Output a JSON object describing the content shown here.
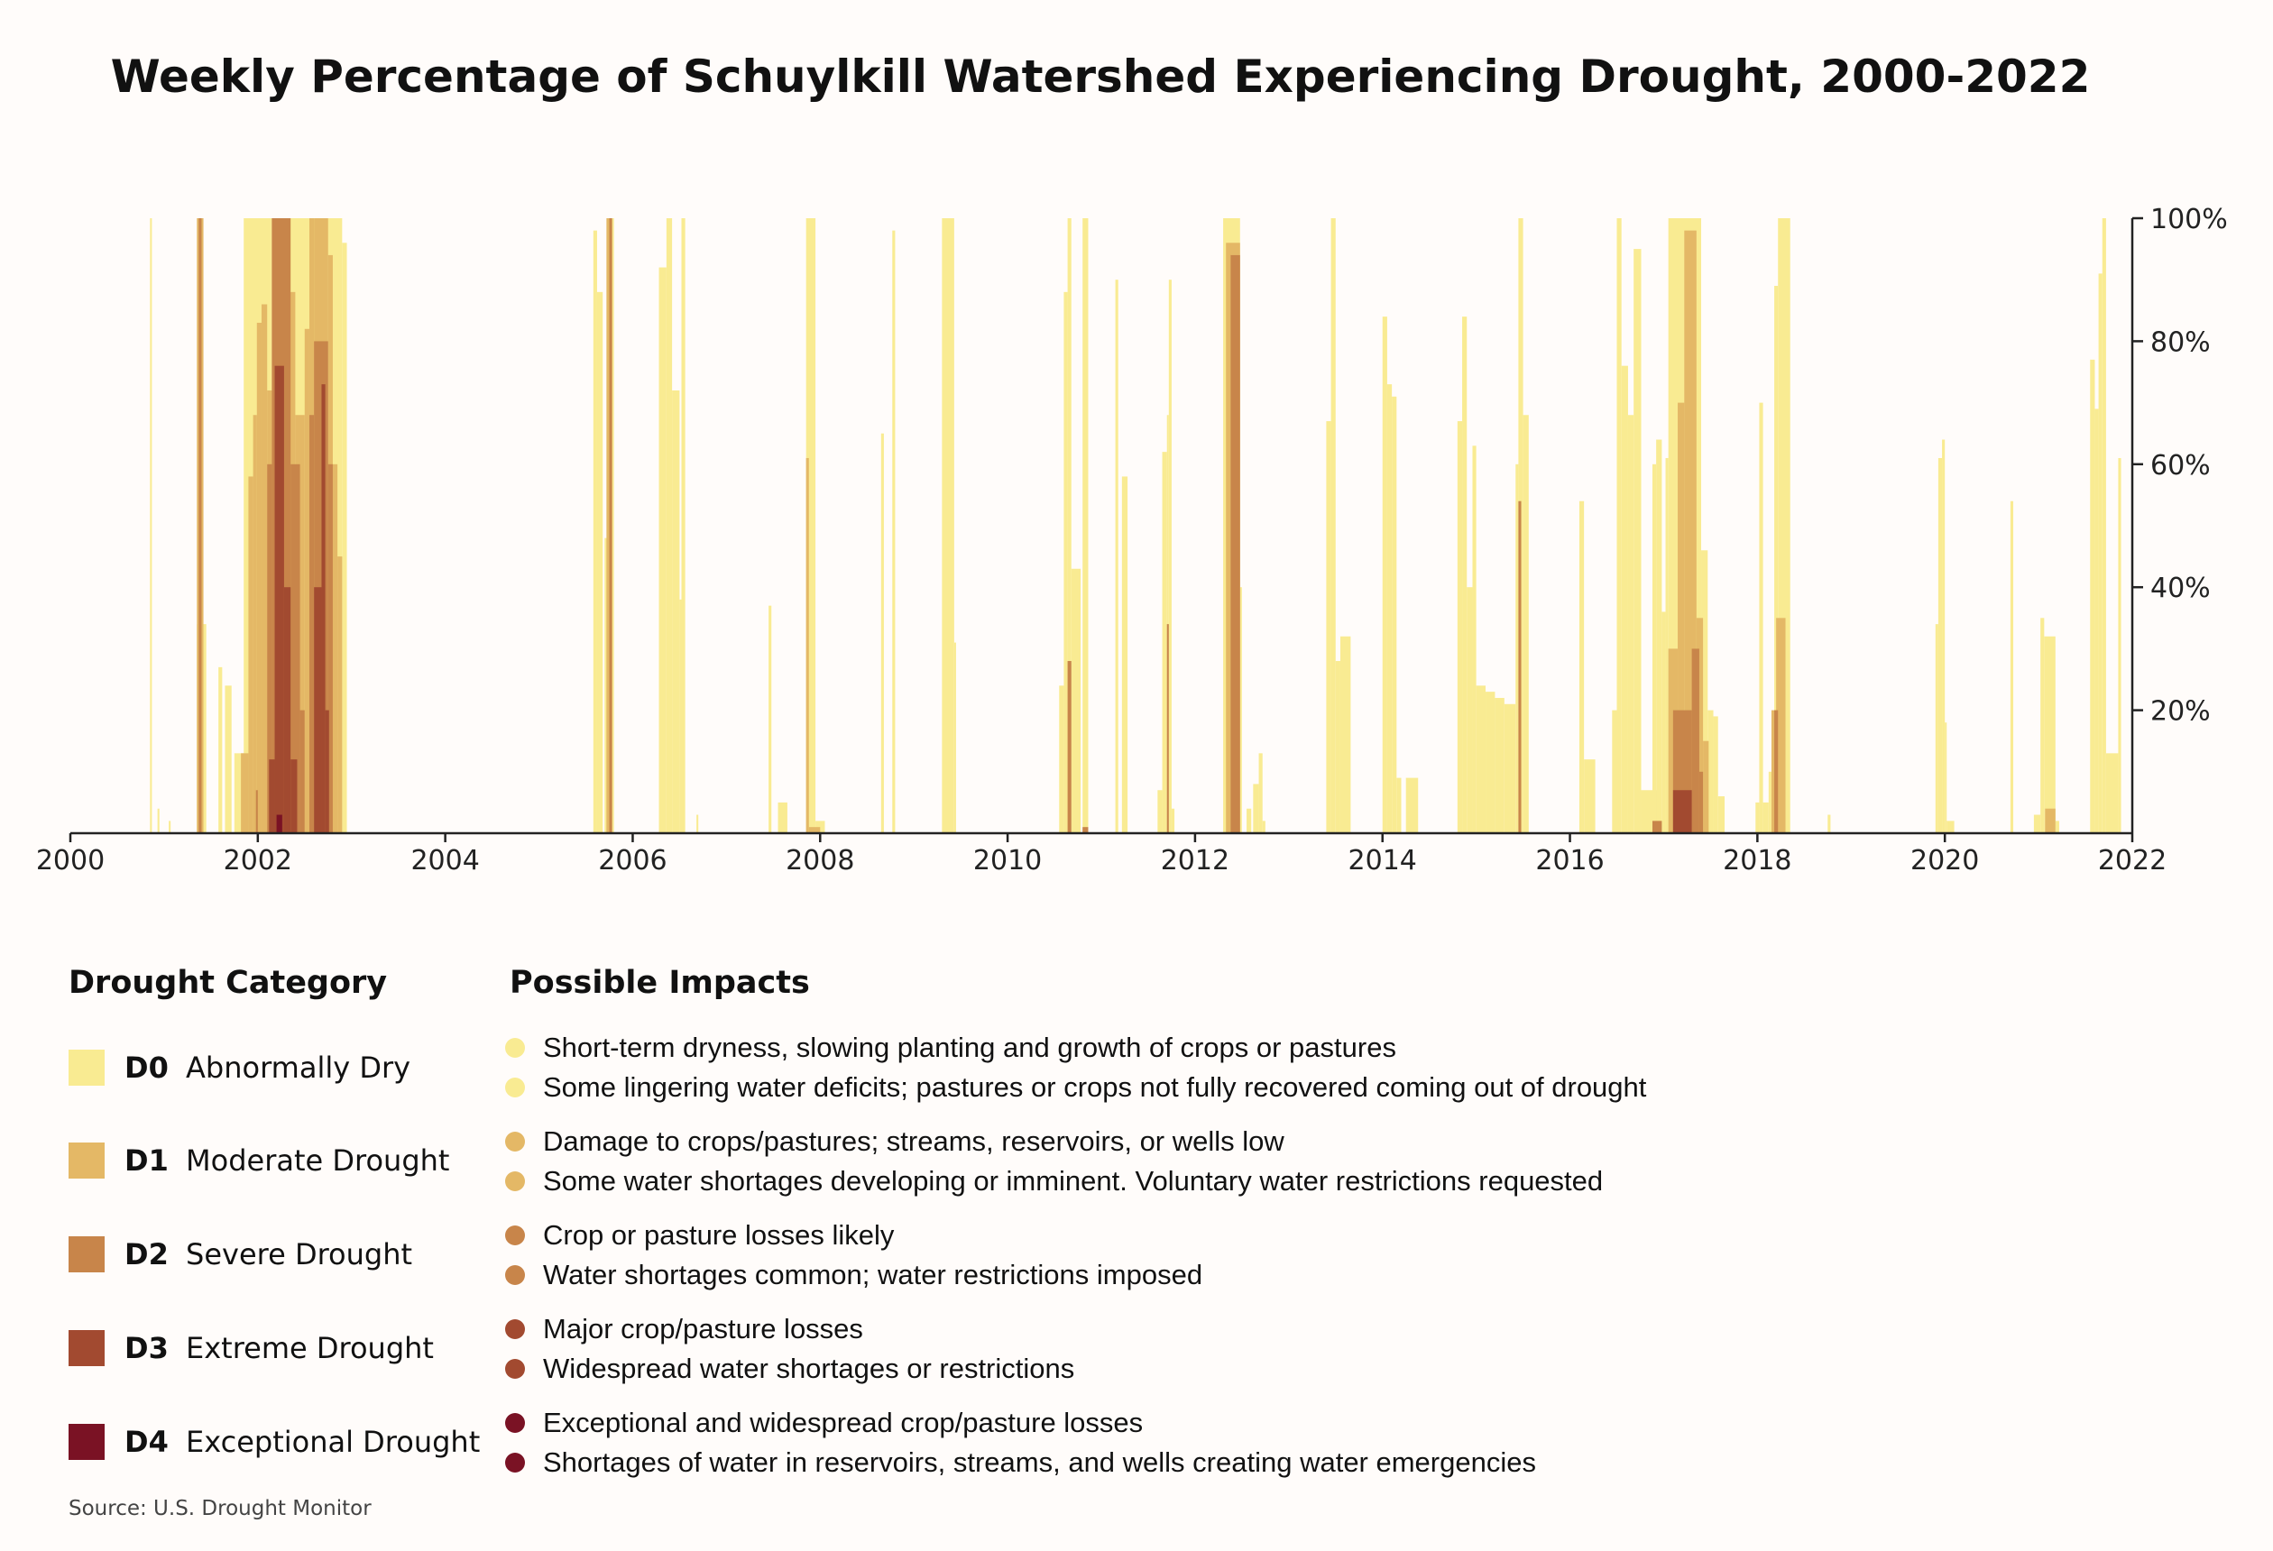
{
  "chart_data": {
    "type": "area",
    "title": "Weekly Percentage of Schuylkill Watershed Experiencing Drought, 2000-2022",
    "xlabel": "",
    "ylabel": "",
    "xlim": [
      2000,
      2022
    ],
    "ylim": [
      0,
      100
    ],
    "x_ticks": [
      "2000",
      "2002",
      "2004",
      "2006",
      "2008",
      "2010",
      "2012",
      "2014",
      "2016",
      "2018",
      "2020",
      "2022"
    ],
    "y_ticks": [
      "20%",
      "40%",
      "60%",
      "80%",
      "100%"
    ],
    "series": [
      {
        "name": "D0",
        "color": "#f9eb92",
        "segments": [
          [
            2000.85,
            2000.87,
            100
          ],
          [
            2000.93,
            2000.95,
            4
          ],
          [
            2001.05,
            2001.07,
            2
          ],
          [
            2001.35,
            2001.45,
            34
          ],
          [
            2001.58,
            2001.62,
            27
          ],
          [
            2001.65,
            2001.72,
            24
          ],
          [
            2001.75,
            2001.85,
            13
          ],
          [
            2001.85,
            2002.15,
            100
          ],
          [
            2002.15,
            2002.55,
            100
          ],
          [
            2002.55,
            2002.9,
            100
          ],
          [
            2002.9,
            2002.95,
            96
          ],
          [
            2005.58,
            2005.62,
            98
          ],
          [
            2005.62,
            2005.68,
            88
          ],
          [
            2005.7,
            2005.74,
            48
          ],
          [
            2005.74,
            2005.8,
            100
          ],
          [
            2006.28,
            2006.36,
            92
          ],
          [
            2006.36,
            2006.42,
            100
          ],
          [
            2006.42,
            2006.5,
            72
          ],
          [
            2006.5,
            2006.52,
            38
          ],
          [
            2006.52,
            2006.56,
            100
          ],
          [
            2006.68,
            2006.7,
            3
          ],
          [
            2007.45,
            2007.48,
            37
          ],
          [
            2007.55,
            2007.65,
            5
          ],
          [
            2007.85,
            2007.95,
            100
          ],
          [
            2007.95,
            2008.05,
            2
          ],
          [
            2008.65,
            2008.68,
            65
          ],
          [
            2008.77,
            2008.8,
            98
          ],
          [
            2009.3,
            2009.43,
            100
          ],
          [
            2009.43,
            2009.45,
            31
          ],
          [
            2010.55,
            2010.6,
            24
          ],
          [
            2010.6,
            2010.64,
            88
          ],
          [
            2010.64,
            2010.68,
            100
          ],
          [
            2010.68,
            2010.78,
            43
          ],
          [
            2010.8,
            2010.86,
            100
          ],
          [
            2011.15,
            2011.18,
            90
          ],
          [
            2011.22,
            2011.28,
            58
          ],
          [
            2011.6,
            2011.65,
            7
          ],
          [
            2011.65,
            2011.7,
            62
          ],
          [
            2011.7,
            2011.72,
            68
          ],
          [
            2011.72,
            2011.75,
            90
          ],
          [
            2011.75,
            2011.78,
            4
          ],
          [
            2012.3,
            2012.48,
            100
          ],
          [
            2012.48,
            2012.5,
            40
          ],
          [
            2012.55,
            2012.6,
            4
          ],
          [
            2012.62,
            2012.68,
            8
          ],
          [
            2012.68,
            2012.72,
            13
          ],
          [
            2012.72,
            2012.75,
            2
          ],
          [
            2013.4,
            2013.45,
            67
          ],
          [
            2013.45,
            2013.5,
            100
          ],
          [
            2013.5,
            2013.55,
            28
          ],
          [
            2013.55,
            2013.66,
            32
          ],
          [
            2014.0,
            2014.05,
            84
          ],
          [
            2014.05,
            2014.1,
            73
          ],
          [
            2014.1,
            2014.15,
            71
          ],
          [
            2014.15,
            2014.2,
            9
          ],
          [
            2014.25,
            2014.38,
            9
          ],
          [
            2014.8,
            2014.85,
            67
          ],
          [
            2014.85,
            2014.9,
            84
          ],
          [
            2014.9,
            2014.96,
            40
          ],
          [
            2014.96,
            2015.0,
            63
          ],
          [
            2015.0,
            2015.1,
            24
          ],
          [
            2015.1,
            2015.2,
            23
          ],
          [
            2015.2,
            2015.3,
            22
          ],
          [
            2015.3,
            2015.42,
            21
          ],
          [
            2015.42,
            2015.45,
            60
          ],
          [
            2015.45,
            2015.5,
            100
          ],
          [
            2015.5,
            2015.56,
            68
          ],
          [
            2016.1,
            2016.15,
            54
          ],
          [
            2016.15,
            2016.27,
            12
          ],
          [
            2016.45,
            2016.5,
            20
          ],
          [
            2016.5,
            2016.55,
            100
          ],
          [
            2016.55,
            2016.62,
            76
          ],
          [
            2016.62,
            2016.68,
            68
          ],
          [
            2016.68,
            2016.76,
            95
          ],
          [
            2016.76,
            2016.95,
            7
          ],
          [
            2016.88,
            2016.92,
            60
          ],
          [
            2016.92,
            2016.98,
            64
          ],
          [
            2016.98,
            2017.02,
            36
          ],
          [
            2017.02,
            2017.05,
            61
          ],
          [
            2017.05,
            2017.4,
            100
          ],
          [
            2017.4,
            2017.47,
            46
          ],
          [
            2017.47,
            2017.53,
            20
          ],
          [
            2017.53,
            2017.58,
            19
          ],
          [
            2017.58,
            2017.65,
            6
          ],
          [
            2017.98,
            2018.02,
            5
          ],
          [
            2018.02,
            2018.06,
            70
          ],
          [
            2018.06,
            2018.12,
            5
          ],
          [
            2018.12,
            2018.18,
            10
          ],
          [
            2018.18,
            2018.22,
            89
          ],
          [
            2018.22,
            2018.35,
            100
          ],
          [
            2018.75,
            2018.78,
            3
          ],
          [
            2019.9,
            2019.93,
            34
          ],
          [
            2019.93,
            2019.97,
            61
          ],
          [
            2019.97,
            2020.0,
            64
          ],
          [
            2020.0,
            2020.02,
            18
          ],
          [
            2020.02,
            2020.1,
            2
          ],
          [
            2020.7,
            2020.73,
            54
          ],
          [
            2020.95,
            2021.02,
            3
          ],
          [
            2021.02,
            2021.06,
            35
          ],
          [
            2021.06,
            2021.18,
            32
          ],
          [
            2021.18,
            2021.22,
            2
          ],
          [
            2021.55,
            2021.6,
            77
          ],
          [
            2021.6,
            2021.64,
            69
          ],
          [
            2021.64,
            2021.68,
            91
          ],
          [
            2021.68,
            2021.72,
            100
          ],
          [
            2021.72,
            2021.85,
            13
          ],
          [
            2021.85,
            2021.88,
            61
          ]
        ]
      },
      {
        "name": "D1",
        "color": "#e4b866",
        "segments": [
          [
            2001.35,
            2001.42,
            100
          ],
          [
            2001.82,
            2001.9,
            13
          ],
          [
            2001.9,
            2001.95,
            58
          ],
          [
            2001.95,
            2001.99,
            68
          ],
          [
            2001.99,
            2002.04,
            83
          ],
          [
            2002.04,
            2002.1,
            86
          ],
          [
            2002.1,
            2002.15,
            72
          ],
          [
            2002.15,
            2002.3,
            100
          ],
          [
            2002.3,
            2002.4,
            88
          ],
          [
            2002.4,
            2002.5,
            68
          ],
          [
            2002.5,
            2002.55,
            82
          ],
          [
            2002.55,
            2002.6,
            100
          ],
          [
            2002.6,
            2002.75,
            100
          ],
          [
            2002.75,
            2002.8,
            94
          ],
          [
            2002.8,
            2002.85,
            60
          ],
          [
            2002.85,
            2002.9,
            45
          ],
          [
            2005.72,
            2005.78,
            100
          ],
          [
            2007.85,
            2007.88,
            61
          ],
          [
            2007.88,
            2008.0,
            1
          ],
          [
            2012.33,
            2012.48,
            96
          ],
          [
            2017.05,
            2017.15,
            30
          ],
          [
            2017.15,
            2017.22,
            70
          ],
          [
            2017.22,
            2017.35,
            98
          ],
          [
            2017.35,
            2017.42,
            35
          ],
          [
            2017.42,
            2017.48,
            15
          ],
          [
            2018.15,
            2018.2,
            20
          ],
          [
            2018.2,
            2018.3,
            35
          ],
          [
            2021.07,
            2021.18,
            4
          ]
        ]
      },
      {
        "name": "D2",
        "color": "#c8854a",
        "segments": [
          [
            2001.37,
            2001.4,
            100
          ],
          [
            2001.98,
            2002.0,
            7
          ],
          [
            2002.1,
            2002.15,
            60
          ],
          [
            2002.15,
            2002.35,
            100
          ],
          [
            2002.35,
            2002.45,
            60
          ],
          [
            2002.45,
            2002.5,
            20
          ],
          [
            2002.55,
            2002.6,
            68
          ],
          [
            2002.6,
            2002.75,
            80
          ],
          [
            2002.75,
            2002.8,
            60
          ],
          [
            2005.75,
            2005.78,
            100
          ],
          [
            2010.64,
            2010.68,
            28
          ],
          [
            2010.8,
            2010.86,
            1
          ],
          [
            2011.7,
            2011.72,
            34
          ],
          [
            2012.38,
            2012.48,
            94
          ],
          [
            2015.45,
            2015.48,
            54
          ],
          [
            2016.88,
            2016.98,
            2
          ],
          [
            2017.1,
            2017.3,
            20
          ],
          [
            2017.3,
            2017.38,
            30
          ],
          [
            2017.38,
            2017.42,
            10
          ],
          [
            2018.18,
            2018.22,
            20
          ]
        ]
      },
      {
        "name": "D3",
        "color": "#a24a30",
        "segments": [
          [
            2002.12,
            2002.18,
            12
          ],
          [
            2002.18,
            2002.28,
            76
          ],
          [
            2002.28,
            2002.35,
            40
          ],
          [
            2002.35,
            2002.42,
            12
          ],
          [
            2002.6,
            2002.68,
            40
          ],
          [
            2002.68,
            2002.72,
            73
          ],
          [
            2002.72,
            2002.76,
            20
          ],
          [
            2017.1,
            2017.3,
            7
          ]
        ]
      },
      {
        "name": "D4",
        "color": "#7a1224",
        "segments": [
          [
            2002.2,
            2002.26,
            3
          ]
        ]
      }
    ]
  },
  "legend": {
    "title": "Drought Category",
    "items": [
      {
        "code": "D0",
        "label": "Abnormally Dry",
        "color": "#f9eb92"
      },
      {
        "code": "D1",
        "label": "Moderate Drought",
        "color": "#e4b866"
      },
      {
        "code": "D2",
        "label": "Severe Drought",
        "color": "#c8854a"
      },
      {
        "code": "D3",
        "label": "Extreme Drought",
        "color": "#a24a30"
      },
      {
        "code": "D4",
        "label": "Exceptional Drought",
        "color": "#7a1224"
      }
    ]
  },
  "impacts": {
    "title": "Possible Impacts",
    "groups": [
      {
        "color": "#f9eb92",
        "lines": [
          "Short-term dryness, slowing planting and growth of crops or pastures",
          "Some lingering water deficits; pastures or crops not fully recovered coming out of drought"
        ]
      },
      {
        "color": "#e4b866",
        "lines": [
          "Damage to crops/pastures; streams, reservoirs, or wells low",
          "Some water shortages developing or imminent. Voluntary water restrictions requested"
        ]
      },
      {
        "color": "#c8854a",
        "lines": [
          "Crop or pasture losses likely",
          "Water shortages common; water restrictions imposed"
        ]
      },
      {
        "color": "#a24a30",
        "lines": [
          "Major crop/pasture losses",
          "Widespread water shortages or restrictions"
        ]
      },
      {
        "color": "#7a1224",
        "lines": [
          "Exceptional and widespread crop/pasture losses",
          "Shortages of water in reservoirs, streams, and wells creating water emergencies"
        ]
      }
    ]
  },
  "source": "Source: U.S. Drought Monitor"
}
